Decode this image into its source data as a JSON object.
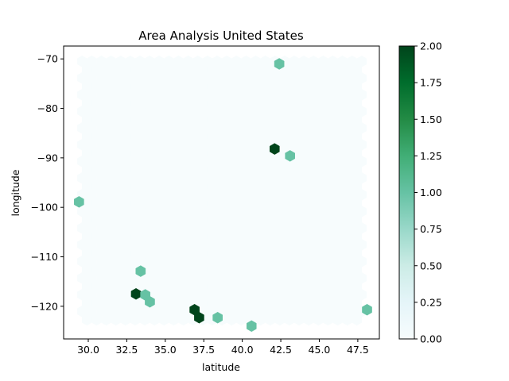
{
  "chart_data": {
    "type": "hexbin",
    "title": "Area Analysis United States",
    "xlabel": "latitude",
    "ylabel": "longitude",
    "xlim": [
      28.4,
      48.9
    ],
    "ylim": [
      -126.6,
      -67.4
    ],
    "xticks": [
      30.0,
      32.5,
      35.0,
      37.5,
      40.0,
      42.5,
      45.0,
      47.5
    ],
    "xtick_labels": [
      "30.0",
      "32.5",
      "35.0",
      "37.5",
      "40.0",
      "42.5",
      "45.0",
      "47.5"
    ],
    "yticks": [
      -70,
      -80,
      -90,
      -100,
      -110,
      -120
    ],
    "ytick_labels": [
      "−70",
      "−80",
      "−90",
      "−100",
      "−110",
      "−120"
    ],
    "colormap": "BuGn",
    "cmap_stops": [
      "#f7fcfd",
      "#e5f5f9",
      "#ccece6",
      "#99d8c9",
      "#66c2a4",
      "#41ae76",
      "#238b45",
      "#006d2c",
      "#00441b"
    ],
    "color_range": [
      0,
      2
    ],
    "colorbar_ticks": [
      "0.00",
      "0.25",
      "0.50",
      "0.75",
      "1.00",
      "1.25",
      "1.50",
      "1.75",
      "2.00"
    ],
    "hexbins": [
      {
        "x": 42.4,
        "y": -71.0,
        "count": 1
      },
      {
        "x": 42.1,
        "y": -88.2,
        "count": 2
      },
      {
        "x": 43.1,
        "y": -89.6,
        "count": 1
      },
      {
        "x": 29.4,
        "y": -98.9,
        "count": 1
      },
      {
        "x": 33.4,
        "y": -112.9,
        "count": 1
      },
      {
        "x": 33.1,
        "y": -117.5,
        "count": 2
      },
      {
        "x": 33.7,
        "y": -117.7,
        "count": 1
      },
      {
        "x": 34.0,
        "y": -119.1,
        "count": 1
      },
      {
        "x": 36.9,
        "y": -120.7,
        "count": 2
      },
      {
        "x": 37.2,
        "y": -122.3,
        "count": 2
      },
      {
        "x": 38.4,
        "y": -122.3,
        "count": 1
      },
      {
        "x": 40.6,
        "y": -124.0,
        "count": 1
      },
      {
        "x": 48.1,
        "y": -120.7,
        "count": 1
      }
    ]
  }
}
